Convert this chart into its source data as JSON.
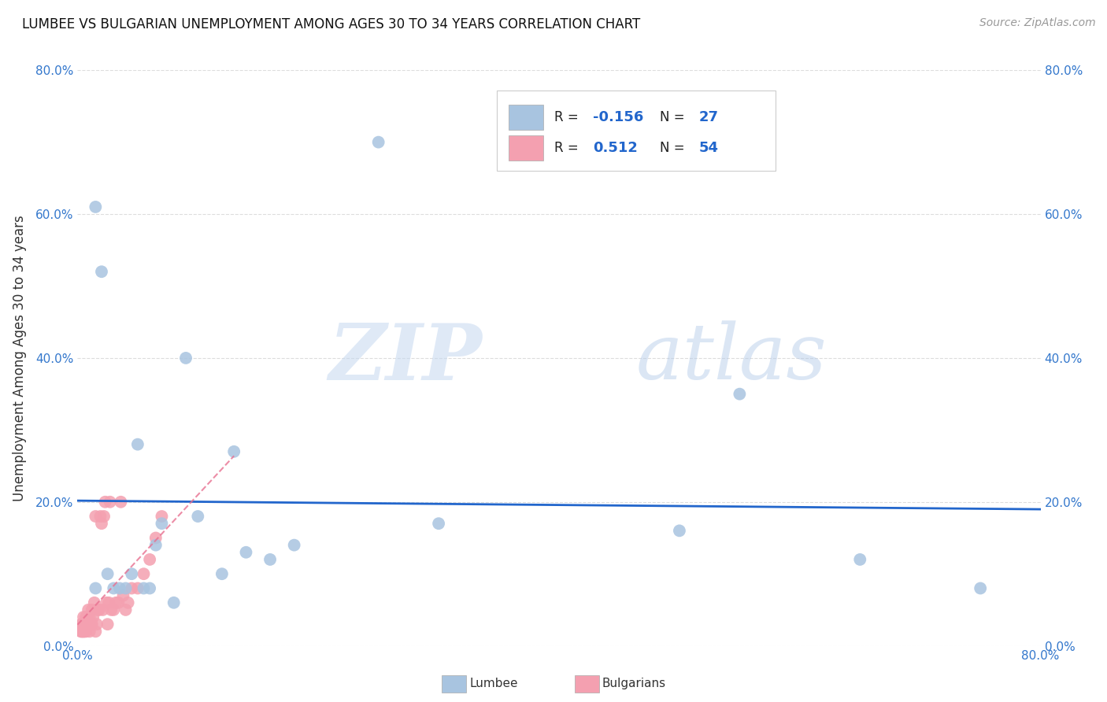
{
  "title": "LUMBEE VS BULGARIAN UNEMPLOYMENT AMONG AGES 30 TO 34 YEARS CORRELATION CHART",
  "source": "Source: ZipAtlas.com",
  "ylabel": "Unemployment Among Ages 30 to 34 years",
  "xlim": [
    0.0,
    0.8
  ],
  "ylim": [
    0.0,
    0.8
  ],
  "lumbee_color": "#a8c4e0",
  "bulgarian_color": "#f4a0b0",
  "lumbee_line_color": "#2266cc",
  "bulgarian_line_color": "#e87090",
  "legend_R_lumbee": "-0.156",
  "legend_N_lumbee": "27",
  "legend_R_bulgarian": "0.512",
  "legend_N_bulgarian": "54",
  "lumbee_x": [
    0.015,
    0.015,
    0.02,
    0.025,
    0.03,
    0.035,
    0.04,
    0.045,
    0.05,
    0.055,
    0.06,
    0.065,
    0.07,
    0.08,
    0.09,
    0.1,
    0.12,
    0.13,
    0.14,
    0.16,
    0.18,
    0.25,
    0.3,
    0.5,
    0.55,
    0.65,
    0.75
  ],
  "lumbee_y": [
    0.61,
    0.08,
    0.52,
    0.1,
    0.08,
    0.08,
    0.08,
    0.1,
    0.28,
    0.08,
    0.08,
    0.14,
    0.17,
    0.06,
    0.4,
    0.18,
    0.1,
    0.27,
    0.13,
    0.12,
    0.14,
    0.7,
    0.17,
    0.16,
    0.35,
    0.12,
    0.08
  ],
  "bulgarian_x": [
    0.003,
    0.003,
    0.003,
    0.004,
    0.004,
    0.005,
    0.005,
    0.005,
    0.005,
    0.006,
    0.006,
    0.007,
    0.007,
    0.007,
    0.008,
    0.008,
    0.009,
    0.009,
    0.01,
    0.01,
    0.01,
    0.011,
    0.012,
    0.012,
    0.013,
    0.014,
    0.015,
    0.015,
    0.016,
    0.017,
    0.018,
    0.019,
    0.02,
    0.021,
    0.022,
    0.023,
    0.024,
    0.025,
    0.026,
    0.027,
    0.028,
    0.03,
    0.032,
    0.034,
    0.036,
    0.038,
    0.04,
    0.042,
    0.045,
    0.05,
    0.055,
    0.06,
    0.065,
    0.07
  ],
  "bulgarian_y": [
    0.02,
    0.02,
    0.03,
    0.02,
    0.03,
    0.02,
    0.02,
    0.03,
    0.04,
    0.02,
    0.03,
    0.02,
    0.03,
    0.04,
    0.03,
    0.04,
    0.03,
    0.05,
    0.02,
    0.03,
    0.04,
    0.03,
    0.03,
    0.05,
    0.04,
    0.06,
    0.02,
    0.18,
    0.03,
    0.05,
    0.05,
    0.18,
    0.17,
    0.05,
    0.18,
    0.2,
    0.06,
    0.03,
    0.06,
    0.2,
    0.05,
    0.05,
    0.06,
    0.06,
    0.2,
    0.07,
    0.05,
    0.06,
    0.08,
    0.08,
    0.1,
    0.12,
    0.15,
    0.18
  ],
  "watermark_zip": "ZIP",
  "watermark_atlas": "atlas",
  "background_color": "#ffffff",
  "grid_color": "#dddddd"
}
